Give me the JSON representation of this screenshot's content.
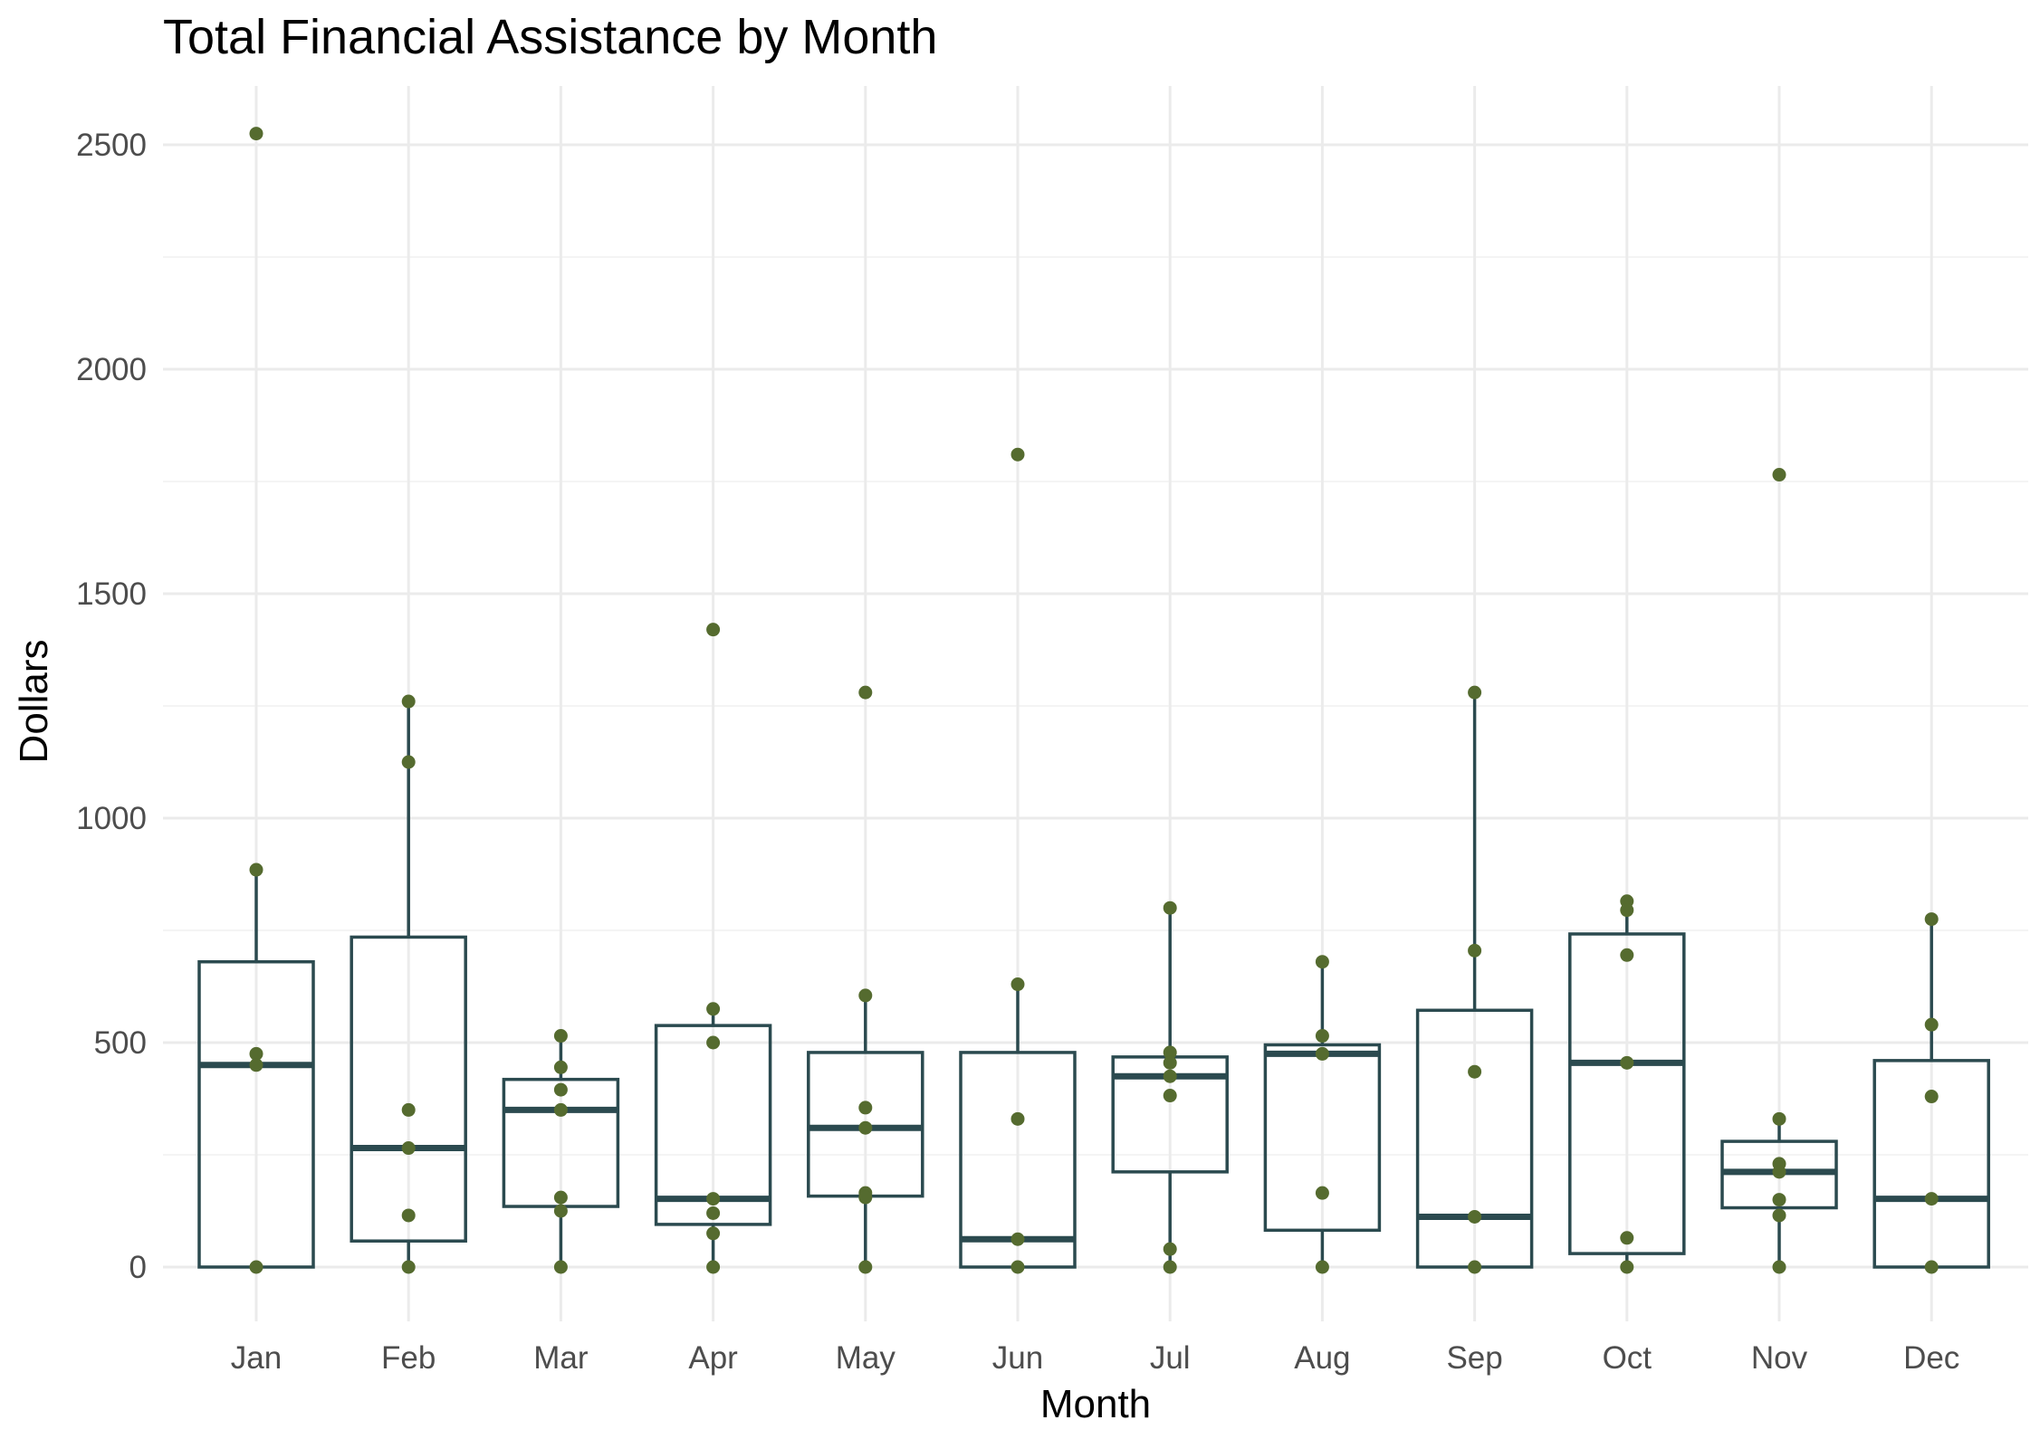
{
  "chart_data": {
    "type": "boxplot",
    "title": "Total Financial Assistance by Month",
    "xlabel": "Month",
    "ylabel": "Dollars",
    "ylim": [
      -120,
      2680
    ],
    "yticks": [
      0,
      500,
      1000,
      1500,
      2000,
      2500
    ],
    "grid": true,
    "categories": [
      "Jan",
      "Feb",
      "Mar",
      "Apr",
      "May",
      "Jun",
      "Jul",
      "Aug",
      "Sep",
      "Oct",
      "Nov",
      "Dec"
    ],
    "boxes": [
      {
        "category": "Jan",
        "lower_whisker": 0,
        "q1": 0,
        "median": 450,
        "q3": 680,
        "upper_whisker": 885
      },
      {
        "category": "Feb",
        "lower_whisker": 0,
        "q1": 58,
        "median": 265,
        "q3": 735,
        "upper_whisker": 1260
      },
      {
        "category": "Mar",
        "lower_whisker": 0,
        "q1": 135,
        "median": 350,
        "q3": 418,
        "upper_whisker": 515
      },
      {
        "category": "Apr",
        "lower_whisker": 0,
        "q1": 95,
        "median": 152,
        "q3": 538,
        "upper_whisker": 575
      },
      {
        "category": "May",
        "lower_whisker": 0,
        "q1": 158,
        "median": 310,
        "q3": 478,
        "upper_whisker": 605
      },
      {
        "category": "Jun",
        "lower_whisker": 0,
        "q1": 0,
        "median": 62,
        "q3": 478,
        "upper_whisker": 630
      },
      {
        "category": "Jul",
        "lower_whisker": 0,
        "q1": 212,
        "median": 425,
        "q3": 468,
        "upper_whisker": 800
      },
      {
        "category": "Aug",
        "lower_whisker": 0,
        "q1": 82,
        "median": 475,
        "q3": 495,
        "upper_whisker": 680
      },
      {
        "category": "Sep",
        "lower_whisker": 0,
        "q1": 0,
        "median": 112,
        "q3": 572,
        "upper_whisker": 1280
      },
      {
        "category": "Oct",
        "lower_whisker": 0,
        "q1": 30,
        "median": 455,
        "q3": 742,
        "upper_whisker": 815
      },
      {
        "category": "Nov",
        "lower_whisker": 0,
        "q1": 132,
        "median": 212,
        "q3": 280,
        "upper_whisker": 330
      },
      {
        "category": "Dec",
        "lower_whisker": 0,
        "q1": 0,
        "median": 152,
        "q3": 460,
        "upper_whisker": 775
      }
    ],
    "points": [
      {
        "category": "Jan",
        "values": [
          2525,
          885,
          475,
          450,
          0
        ]
      },
      {
        "category": "Feb",
        "values": [
          1260,
          1125,
          350,
          265,
          115,
          0
        ]
      },
      {
        "category": "Mar",
        "values": [
          515,
          445,
          395,
          350,
          155,
          125,
          0
        ]
      },
      {
        "category": "Apr",
        "values": [
          1420,
          575,
          500,
          152,
          120,
          75,
          0
        ]
      },
      {
        "category": "May",
        "values": [
          1280,
          605,
          355,
          310,
          165,
          155,
          0
        ]
      },
      {
        "category": "Jun",
        "values": [
          1810,
          630,
          330,
          62,
          0
        ]
      },
      {
        "category": "Jul",
        "values": [
          800,
          478,
          455,
          425,
          382,
          40,
          0
        ]
      },
      {
        "category": "Aug",
        "values": [
          680,
          515,
          475,
          165,
          0
        ]
      },
      {
        "category": "Sep",
        "values": [
          1280,
          705,
          435,
          112,
          0
        ]
      },
      {
        "category": "Oct",
        "values": [
          815,
          795,
          695,
          455,
          65,
          0
        ]
      },
      {
        "category": "Nov",
        "values": [
          1765,
          330,
          230,
          212,
          150,
          115,
          0
        ]
      },
      {
        "category": "Dec",
        "values": [
          775,
          540,
          380,
          152,
          0
        ]
      }
    ],
    "colors": {
      "box_stroke": "#2b4a4f",
      "point_fill": "#556b2f",
      "grid_major": "#ebebeb",
      "grid_minor": "#f4f4f4",
      "tick_text": "#4d4d4d"
    }
  }
}
